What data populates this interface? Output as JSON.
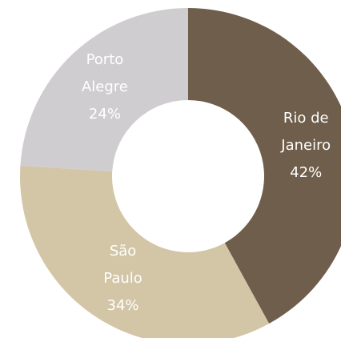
{
  "chart_data": {
    "type": "donut",
    "categories": [
      "Rio de Janeiro",
      "São Paulo",
      "Porto Alegre"
    ],
    "values": [
      42,
      34,
      24
    ],
    "value_labels": [
      "42%",
      "34%",
      "24%"
    ],
    "colors": [
      "#6f5e4b",
      "#d3c6a6",
      "#d0cdd0"
    ]
  }
}
